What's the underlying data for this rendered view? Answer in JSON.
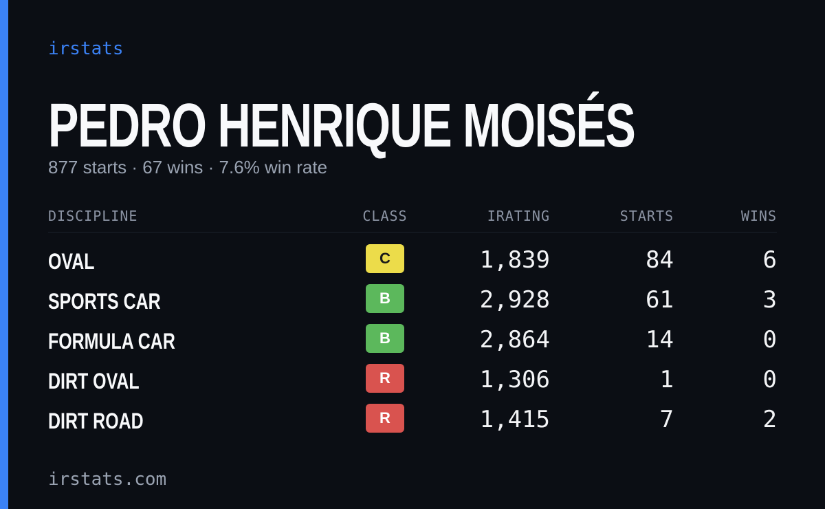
{
  "brand": "irstats",
  "player": {
    "name": "PEDRO HENRIQUE MOISÉS",
    "summary": "877 starts · 67 wins · 7.6% win rate"
  },
  "table": {
    "headers": [
      "DISCIPLINE",
      "CLASS",
      "IRATING",
      "STARTS",
      "WINS"
    ],
    "rows": [
      [
        "OVAL",
        "C",
        "1,839",
        "84",
        "6"
      ],
      [
        "SPORTS CAR",
        "B",
        "2,928",
        "61",
        "3"
      ],
      [
        "FORMULA CAR",
        "B",
        "2,864",
        "14",
        "0"
      ],
      [
        "DIRT OVAL",
        "R",
        "1,306",
        "1",
        "0"
      ],
      [
        "DIRT ROAD",
        "R",
        "1,415",
        "7",
        "2"
      ]
    ]
  },
  "footer": "irstats.com"
}
